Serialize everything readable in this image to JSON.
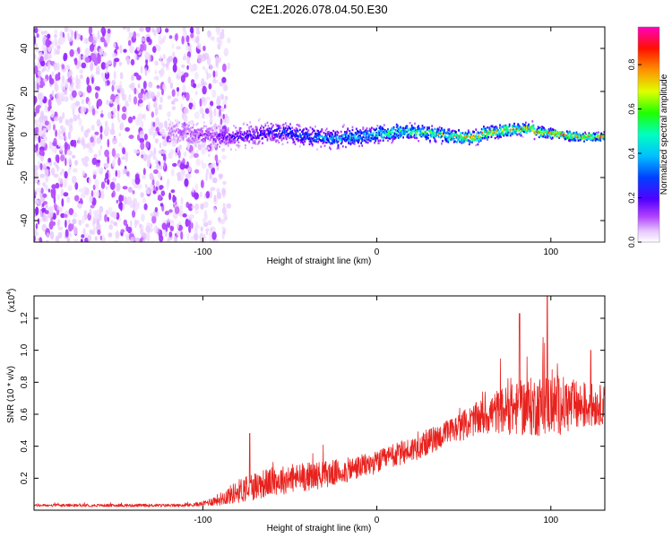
{
  "title": "C2E1.2026.078.04.50.E30",
  "chart_data": [
    {
      "type": "heatmap",
      "name": "spectrogram",
      "xlabel": "Height of straight line (km)",
      "ylabel": "Frequency (Hz)",
      "xlim": [
        -197,
        131
      ],
      "ylim": [
        -50,
        50
      ],
      "xticks": [
        -100,
        0,
        100
      ],
      "xtick_labels": [
        "-100",
        "0",
        "100"
      ],
      "yticks": [
        -40,
        -20,
        0,
        20,
        40
      ],
      "ytick_labels": [
        "-40",
        "-20",
        "0",
        "20",
        "40"
      ],
      "colorbar": {
        "label": "Normalized spectral amplitude",
        "range": [
          0,
          0.97
        ],
        "ticks": [
          0.0,
          0.2,
          0.4,
          0.6,
          0.8
        ],
        "tick_labels": [
          "0.0",
          "0.2",
          "0.4",
          "0.6",
          "0.8"
        ],
        "colormap": [
          "#ffffff",
          "#e6c8ff",
          "#c060ff",
          "#7a00ff",
          "#0000ff",
          "#0080ff",
          "#00ffff",
          "#00ff40",
          "#ffff00",
          "#ff8000",
          "#ff0000",
          "#ff00ff"
        ]
      },
      "regions": [
        {
          "description": "noise scatter",
          "x_range": [
            -197,
            -85
          ],
          "freq_range": [
            -50,
            50
          ],
          "amplitude": 0.05
        },
        {
          "description": "signal trace",
          "x_range": [
            -120,
            131
          ],
          "freq_center": 0,
          "freq_halfwidth": [
            9,
            3
          ],
          "amplitude": [
            0.2,
            0.9
          ]
        }
      ]
    },
    {
      "type": "line",
      "name": "snr",
      "xlabel": "Height of straight line (km)",
      "ylabel": "SNR (10 * v/v)",
      "y_multiplier": "(x10",
      "y_multiplier_exp": "4",
      "y_multiplier_close": ")",
      "xlim": [
        -197,
        131
      ],
      "ylim": [
        0,
        1.34
      ],
      "xticks": [
        -100,
        0,
        100
      ],
      "xtick_labels": [
        "-100",
        "0",
        "100"
      ],
      "yticks": [
        0.2,
        0.4,
        0.6,
        0.8,
        1.0,
        1.2
      ],
      "ytick_labels": [
        "0.2",
        "0.4",
        "0.6",
        "0.8",
        "1.0",
        "1.2"
      ],
      "color": "#e8221e",
      "trend": {
        "x": [
          -197,
          -110,
          -100,
          -90,
          -75,
          -60,
          -40,
          -20,
          0,
          20,
          40,
          55,
          70,
          85,
          100,
          115,
          131
        ],
        "y": [
          0.03,
          0.03,
          0.04,
          0.07,
          0.14,
          0.18,
          0.21,
          0.24,
          0.3,
          0.38,
          0.48,
          0.56,
          0.62,
          0.64,
          0.66,
          0.65,
          0.66
        ],
        "noise": [
          0.008,
          0.01,
          0.015,
          0.04,
          0.09,
          0.09,
          0.09,
          0.08,
          0.07,
          0.08,
          0.08,
          0.1,
          0.14,
          0.18,
          0.2,
          0.16,
          0.12
        ]
      },
      "spikes": [
        {
          "x": -73,
          "y": 0.48
        },
        {
          "x": 82,
          "y": 1.23
        },
        {
          "x": 98,
          "y": 1.36
        },
        {
          "x": 123,
          "y": 1.0
        }
      ]
    }
  ]
}
